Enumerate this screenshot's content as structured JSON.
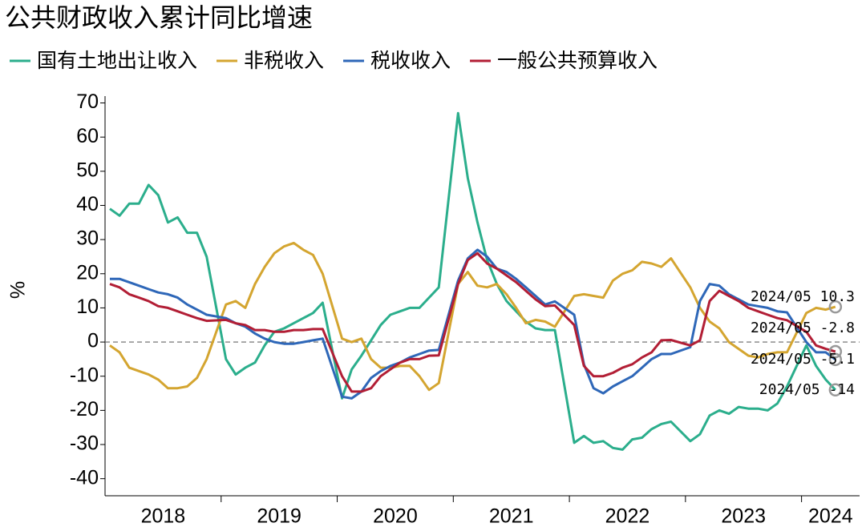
{
  "chart_data": {
    "type": "line",
    "title": "公共财政收入累计同比增速",
    "ylabel": "%",
    "ylim": [
      -45,
      72
    ],
    "yticks": [
      -40,
      -30,
      -20,
      -10,
      0,
      10,
      20,
      30,
      40,
      50,
      60,
      70
    ],
    "year_labels": [
      "2018",
      "2019",
      "2020",
      "2021",
      "2022",
      "2023",
      "2024"
    ],
    "categories": [
      "2018/02",
      "2018/03",
      "2018/04",
      "2018/05",
      "2018/06",
      "2018/07",
      "2018/08",
      "2018/09",
      "2018/10",
      "2018/11",
      "2018/12",
      "2019/02",
      "2019/03",
      "2019/04",
      "2019/05",
      "2019/06",
      "2019/07",
      "2019/08",
      "2019/09",
      "2019/10",
      "2019/11",
      "2019/12",
      "2020/02",
      "2020/03",
      "2020/04",
      "2020/05",
      "2020/06",
      "2020/07",
      "2020/08",
      "2020/09",
      "2020/10",
      "2020/11",
      "2020/12",
      "2021/02",
      "2021/03",
      "2021/04",
      "2021/05",
      "2021/06",
      "2021/07",
      "2021/08",
      "2021/09",
      "2021/10",
      "2021/11",
      "2021/12",
      "2022/02",
      "2022/03",
      "2022/04",
      "2022/05",
      "2022/06",
      "2022/07",
      "2022/08",
      "2022/09",
      "2022/10",
      "2022/11",
      "2022/12",
      "2023/02",
      "2023/03",
      "2023/04",
      "2023/05",
      "2023/06",
      "2023/07",
      "2023/08",
      "2023/09",
      "2023/10",
      "2023/11",
      "2023/12",
      "2024/02",
      "2024/03",
      "2024/04",
      "2024/05"
    ],
    "series": [
      {
        "name": "国有土地出让收入",
        "color": "#2bae8c",
        "values": [
          39,
          37,
          40.5,
          40.5,
          46,
          43,
          35,
          36.5,
          32,
          32,
          25,
          -5,
          -9.5,
          -7.5,
          -6,
          -1,
          3,
          4,
          5.5,
          7,
          8.5,
          11.5,
          -16.5,
          -8,
          -4,
          0.5,
          5,
          8,
          9,
          10,
          10,
          13,
          16,
          67,
          48,
          35,
          24,
          17,
          12,
          9,
          6,
          4,
          3.5,
          3.5,
          -29.5,
          -27.5,
          -29.5,
          -29,
          -31,
          -31.5,
          -28.5,
          -28,
          -25.5,
          -24,
          -23.3,
          -29,
          -27,
          -21.5,
          -20,
          -21,
          -19,
          -19.5,
          -19.5,
          -20,
          -18,
          -13,
          -1,
          -7,
          -11,
          -14
        ]
      },
      {
        "name": "非税收入",
        "color": "#d4a530",
        "values": [
          -1,
          -3,
          -7.5,
          -8.5,
          -9.5,
          -11,
          -13.5,
          -13.5,
          -13,
          -10.5,
          -5,
          11,
          12,
          10,
          17,
          22,
          26,
          28,
          29,
          27,
          25.5,
          20,
          1,
          0,
          1,
          -5,
          -7.5,
          -7.5,
          -7,
          -7,
          -10,
          -14,
          -12,
          17,
          20.5,
          16.5,
          16,
          17,
          14,
          10,
          5.5,
          6.5,
          6,
          4.5,
          13.5,
          14,
          13.5,
          13,
          18,
          20,
          21,
          23.5,
          23,
          22,
          24.5,
          16,
          10,
          6,
          4,
          0,
          -2,
          -4,
          -4.5,
          -3.5,
          -3,
          -3,
          8.5,
          10,
          9.5,
          10.3
        ]
      },
      {
        "name": "税收收入",
        "color": "#2e67b8",
        "values": [
          18.5,
          18.5,
          17.5,
          16.5,
          15.5,
          14.5,
          14,
          13,
          11,
          9.5,
          8,
          7,
          5.5,
          4.5,
          2.5,
          1,
          0,
          -0.5,
          -0.5,
          0,
          0.5,
          1,
          -16,
          -16.5,
          -14.5,
          -10.5,
          -8.5,
          -7,
          -6,
          -4.5,
          -3.5,
          -2.5,
          -2.3,
          18,
          24.5,
          27,
          25,
          21.5,
          20.5,
          18.5,
          16,
          13.5,
          11,
          11.9,
          8,
          -6.5,
          -13.5,
          -15,
          -13,
          -11.5,
          -10,
          -7.5,
          -5,
          -3.5,
          -3.5,
          -1.5,
          12,
          17,
          16.5,
          14,
          12.5,
          11,
          10.5,
          10,
          9,
          8.7,
          0,
          -3,
          -3,
          -5.1
        ]
      },
      {
        "name": "一般公共预算收入",
        "color": "#b21e35",
        "values": [
          17,
          16,
          14,
          13,
          12,
          10.5,
          10,
          9,
          8,
          7,
          6.2,
          6.5,
          5.5,
          5,
          3.5,
          3.5,
          3,
          3,
          3.5,
          3.5,
          3.8,
          3.8,
          -10,
          -14.5,
          -14.5,
          -13.5,
          -10,
          -8,
          -6,
          -5,
          -5,
          -4,
          -3.9,
          17,
          24,
          26,
          23,
          21.5,
          19.5,
          17.5,
          15,
          12.5,
          10.5,
          10.7,
          5,
          -7,
          -10,
          -10,
          -9,
          -7.5,
          -6.5,
          -4.5,
          -3,
          0.5,
          0.6,
          -1,
          0.5,
          12,
          15,
          13.5,
          12,
          10,
          9,
          8,
          7,
          6.4,
          3,
          -1,
          -2,
          -2.8
        ]
      }
    ],
    "annotations": [
      "2024/05  10.3",
      "2024/05  -2.8",
      "2024/05  -5.1",
      "2024/05  -14"
    ]
  }
}
